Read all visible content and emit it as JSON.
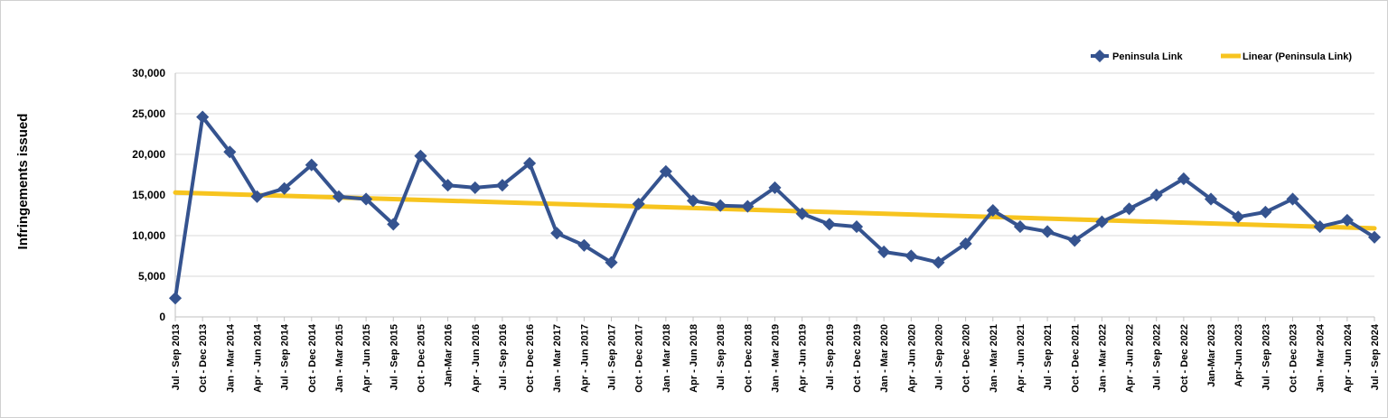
{
  "chart_data": {
    "type": "line",
    "title": "",
    "xlabel": "",
    "ylabel": "Infringements issued",
    "ylim": [
      0,
      30000
    ],
    "yticks": [
      0,
      5000,
      10000,
      15000,
      20000,
      25000,
      30000
    ],
    "ytick_labels": [
      "0",
      "5,000",
      "10,000",
      "15,000",
      "20,000",
      "25,000",
      "30,000"
    ],
    "grid": "horizontal",
    "legend_position": "top-right",
    "colors": {
      "series": "#35538f",
      "trend": "#f7c41f",
      "grid": "#d9d9d9",
      "axis": "#bfbfbf"
    },
    "categories": [
      "Jul - Sep 2013",
      "Oct - Dec 2013",
      "Jan - Mar 2014",
      "Apr - Jun 2014",
      "Jul - Sep 2014",
      "Oct - Dec 2014",
      "Jan - Mar 2015",
      "Apr - Jun 2015",
      "Jul - Sep 2015",
      "Oct - Dec 2015",
      "Jan-Mar 2016",
      "Apr - Jun 2016",
      "Jul - Sep 2016",
      "Oct - Dec 2016",
      "Jan - Mar 2017",
      "Apr - Jun 2017",
      "Jul - Sep 2017",
      "Oct - Dec 2017",
      "Jan - Mar 2018",
      "Apr - Jun 2018",
      "Jul - Sep 2018",
      "Oct - Dec 2018",
      "Jan - Mar 2019",
      "Apr - Jun 2019",
      "Jul - Sep 2019",
      "Oct - Dec 2019",
      "Jan - Mar 2020",
      "Apr - Jun 2020",
      "Jul - Sep 2020",
      "Oct - Dec 2020",
      "Jan - Mar 2021",
      "Apr - Jun 2021",
      "Jul - Sep 2021",
      "Oct - Dec 2021",
      "Jan - Mar 2022",
      "Apr - Jun 2022",
      "Jul - Sep 2022",
      "Oct - Dec 2022",
      "Jan-Mar 2023",
      "Apr-Jun 2023",
      "Jul - Sep 2023",
      "Oct - Dec 2023",
      "Jan - Mar 2024",
      "Apr - Jun 2024",
      "Jul - Sep 2024"
    ],
    "series": [
      {
        "name": "Peninsula Link",
        "marker": "diamond",
        "values": [
          2300,
          24600,
          20300,
          14800,
          15800,
          18700,
          14800,
          14500,
          11400,
          19800,
          16200,
          15900,
          16200,
          18900,
          10300,
          8800,
          6700,
          13900,
          17900,
          14300,
          13700,
          13600,
          15900,
          12700,
          11400,
          11100,
          8000,
          7500,
          6700,
          9000,
          13100,
          11100,
          10500,
          9400,
          11700,
          13300,
          15000,
          17000,
          14500,
          12300,
          12900,
          14500,
          11100,
          11900,
          9800
        ]
      }
    ],
    "trendline": {
      "name": "Linear (Peninsula Link)",
      "type": "linear",
      "start_value": 15300,
      "end_value": 10900
    }
  }
}
